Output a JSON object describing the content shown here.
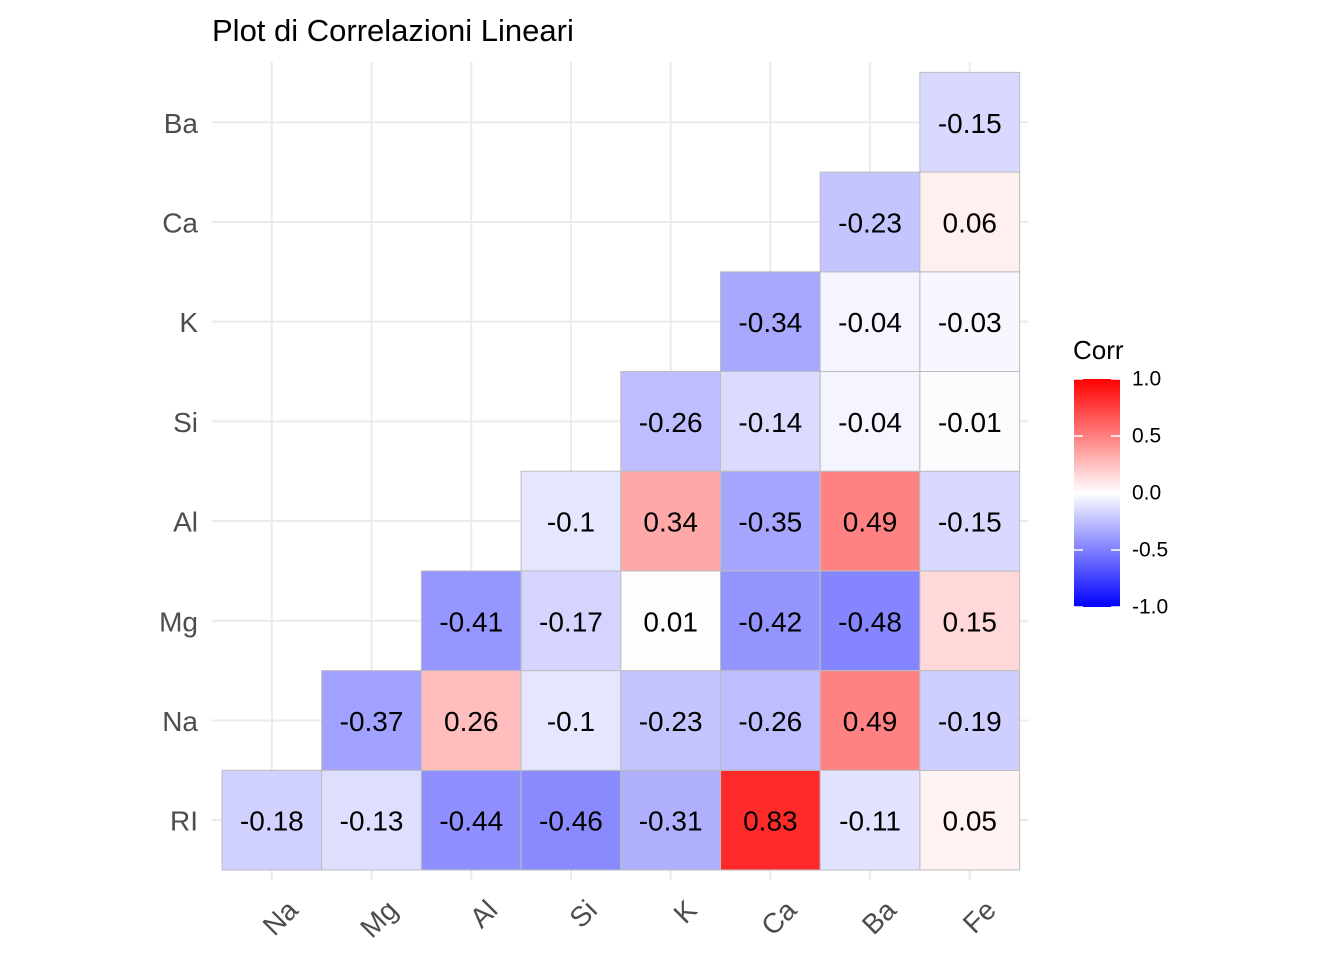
{
  "chart_data": {
    "type": "heatmap",
    "title": "Plot di Correlazioni Lineari",
    "x_categories": [
      "Na",
      "Mg",
      "Al",
      "Si",
      "K",
      "Ca",
      "Ba",
      "Fe"
    ],
    "y_categories": [
      "RI",
      "Na",
      "Mg",
      "Al",
      "Si",
      "K",
      "Ca",
      "Ba"
    ],
    "cells": [
      {
        "x": "Na",
        "y": "RI",
        "value": -0.18,
        "label": "-0.18"
      },
      {
        "x": "Mg",
        "y": "RI",
        "value": -0.13,
        "label": "-0.13"
      },
      {
        "x": "Al",
        "y": "RI",
        "value": -0.44,
        "label": "-0.44"
      },
      {
        "x": "Si",
        "y": "RI",
        "value": -0.46,
        "label": "-0.46"
      },
      {
        "x": "K",
        "y": "RI",
        "value": -0.31,
        "label": "-0.31"
      },
      {
        "x": "Ca",
        "y": "RI",
        "value": 0.83,
        "label": "0.83"
      },
      {
        "x": "Ba",
        "y": "RI",
        "value": -0.11,
        "label": "-0.11"
      },
      {
        "x": "Fe",
        "y": "RI",
        "value": 0.05,
        "label": "0.05"
      },
      {
        "x": "Mg",
        "y": "Na",
        "value": -0.37,
        "label": "-0.37"
      },
      {
        "x": "Al",
        "y": "Na",
        "value": 0.26,
        "label": "0.26"
      },
      {
        "x": "Si",
        "y": "Na",
        "value": -0.1,
        "label": "-0.1"
      },
      {
        "x": "K",
        "y": "Na",
        "value": -0.23,
        "label": "-0.23"
      },
      {
        "x": "Ca",
        "y": "Na",
        "value": -0.26,
        "label": "-0.26"
      },
      {
        "x": "Ba",
        "y": "Na",
        "value": 0.49,
        "label": "0.49"
      },
      {
        "x": "Fe",
        "y": "Na",
        "value": -0.19,
        "label": "-0.19"
      },
      {
        "x": "Al",
        "y": "Mg",
        "value": -0.41,
        "label": "-0.41"
      },
      {
        "x": "Si",
        "y": "Mg",
        "value": -0.17,
        "label": "-0.17"
      },
      {
        "x": "K",
        "y": "Mg",
        "value": 0.01,
        "label": "0.01"
      },
      {
        "x": "Ca",
        "y": "Mg",
        "value": -0.42,
        "label": "-0.42"
      },
      {
        "x": "Ba",
        "y": "Mg",
        "value": -0.48,
        "label": "-0.48"
      },
      {
        "x": "Fe",
        "y": "Mg",
        "value": 0.15,
        "label": "0.15"
      },
      {
        "x": "Si",
        "y": "Al",
        "value": -0.1,
        "label": "-0.1"
      },
      {
        "x": "K",
        "y": "Al",
        "value": 0.34,
        "label": "0.34"
      },
      {
        "x": "Ca",
        "y": "Al",
        "value": -0.35,
        "label": "-0.35"
      },
      {
        "x": "Ba",
        "y": "Al",
        "value": 0.49,
        "label": "0.49"
      },
      {
        "x": "Fe",
        "y": "Al",
        "value": -0.15,
        "label": "-0.15"
      },
      {
        "x": "K",
        "y": "Si",
        "value": -0.26,
        "label": "-0.26"
      },
      {
        "x": "Ca",
        "y": "Si",
        "value": -0.14,
        "label": "-0.14"
      },
      {
        "x": "Ba",
        "y": "Si",
        "value": -0.04,
        "label": "-0.04"
      },
      {
        "x": "Fe",
        "y": "Si",
        "value": -0.01,
        "label": "-0.01"
      },
      {
        "x": "Ca",
        "y": "K",
        "value": -0.34,
        "label": "-0.34"
      },
      {
        "x": "Ba",
        "y": "K",
        "value": -0.04,
        "label": "-0.04"
      },
      {
        "x": "Fe",
        "y": "K",
        "value": -0.03,
        "label": "-0.03"
      },
      {
        "x": "Ba",
        "y": "Ca",
        "value": -0.23,
        "label": "-0.23"
      },
      {
        "x": "Fe",
        "y": "Ca",
        "value": 0.06,
        "label": "0.06"
      },
      {
        "x": "Fe",
        "y": "Ba",
        "value": -0.15,
        "label": "-0.15"
      }
    ],
    "legend": {
      "title": "Corr",
      "placement": "right",
      "ticks": [
        1.0,
        0.5,
        0.0,
        -0.5,
        -1.0
      ],
      "tick_labels": [
        "1.0",
        "0.5",
        "0.0",
        "-0.5",
        "-1.0"
      ],
      "range": [
        -1,
        1
      ]
    },
    "colors": {
      "low": "#0000ff",
      "mid": "#ffffff",
      "high": "#ff0000",
      "grid": "#ebebeb",
      "tile_border": "#bdbdbd"
    },
    "grid": true
  }
}
